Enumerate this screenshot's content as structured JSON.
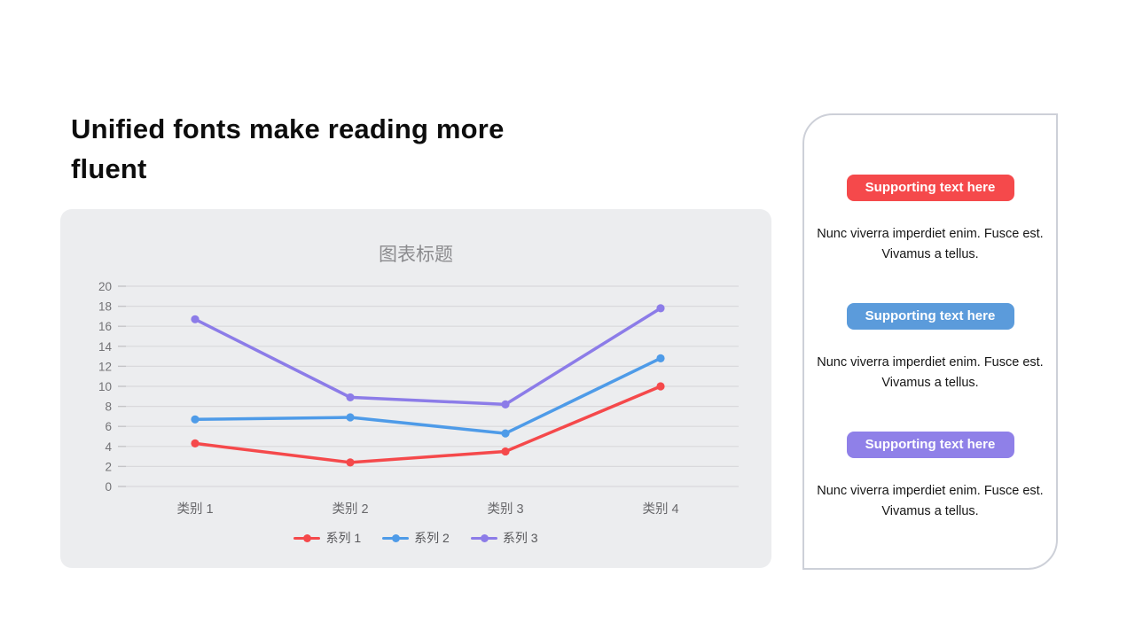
{
  "slide": {
    "title": "Unified fonts make reading more fluent"
  },
  "chart": {
    "background_color": "#ECEDEF",
    "gridline_color": "#D9D9DC",
    "axis_label_color": "#737376"
  },
  "chart_data": {
    "type": "line",
    "title": "图表标题",
    "categories": [
      "类别 1",
      "类别 2",
      "类别 3",
      "类别 4"
    ],
    "series": [
      {
        "name": "系列 1",
        "color": "#F5494B",
        "values": [
          4.3,
          2.4,
          3.5,
          10.0
        ]
      },
      {
        "name": "系列 2",
        "color": "#4E9BE8",
        "values": [
          6.7,
          6.9,
          5.3,
          12.8
        ]
      },
      {
        "name": "系列 3",
        "color": "#8C7CE8",
        "values": [
          16.7,
          8.9,
          8.2,
          17.8
        ]
      }
    ],
    "xlabel": "",
    "ylabel": "",
    "ylim": [
      0,
      20
    ],
    "ytick_step": 2,
    "grid": true,
    "legend_position": "bottom"
  },
  "panel": {
    "border_color": "#CDD0D8",
    "sections": [
      {
        "button_label": "Supporting text here",
        "button_color": "#F5494B",
        "body_lines": [
          "Nunc viverra imperdiet enim. Fusce est.",
          "Vivamus a tellus."
        ]
      },
      {
        "button_label": "Supporting text here",
        "button_color": "#5B9BDB",
        "body_lines": [
          "Nunc viverra imperdiet enim. Fusce est.",
          "Vivamus a tellus."
        ]
      },
      {
        "button_label": "Supporting text here",
        "button_color": "#8F80E8",
        "body_lines": [
          "Nunc viverra imperdiet enim. Fusce est.",
          "Vivamus a tellus."
        ]
      }
    ]
  }
}
